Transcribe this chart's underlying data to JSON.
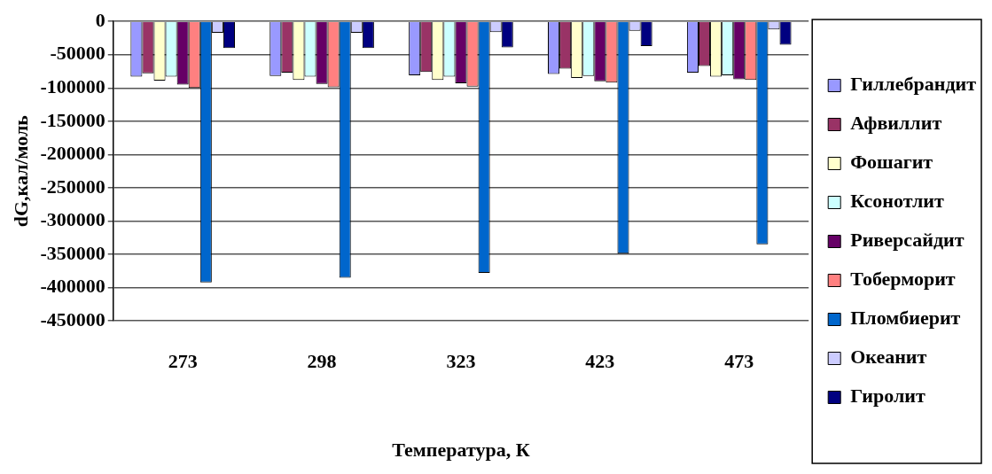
{
  "chart_data": {
    "type": "bar",
    "xlabel": "Температура, К",
    "ylabel": "dG,кал/моль",
    "categories": [
      "273",
      "298",
      "323",
      "423",
      "473"
    ],
    "series": [
      {
        "name": "Гиллебрандит",
        "color": "#9999ff",
        "values": [
          -83000,
          -82000,
          -81000,
          -79000,
          -77000
        ]
      },
      {
        "name": "Афвиллит",
        "color": "#993366",
        "values": [
          -78000,
          -77000,
          -76000,
          -71000,
          -67000
        ]
      },
      {
        "name": "Фошагит",
        "color": "#ffffcc",
        "values": [
          -89000,
          -88000,
          -88000,
          -85000,
          -83000
        ]
      },
      {
        "name": "Ксонотлит",
        "color": "#ccffff",
        "values": [
          -83000,
          -83000,
          -83000,
          -82000,
          -81000
        ]
      },
      {
        "name": "Риверсайдит",
        "color": "#660066",
        "values": [
          -95000,
          -94000,
          -93000,
          -90000,
          -87000
        ]
      },
      {
        "name": "Тоберморит",
        "color": "#ff8080",
        "values": [
          -100000,
          -99000,
          -98000,
          -92000,
          -88000
        ]
      },
      {
        "name": "Пломбиерит",
        "color": "#0066cc",
        "values": [
          -392000,
          -385000,
          -378000,
          -349000,
          -335000
        ]
      },
      {
        "name": "Океанит",
        "color": "#ccccff",
        "values": [
          -17000,
          -17000,
          -16000,
          -14000,
          -12000
        ]
      },
      {
        "name": "Гиролит",
        "color": "#000080",
        "values": [
          -40000,
          -40000,
          -39000,
          -37000,
          -35000
        ]
      }
    ],
    "ylim": [
      -450000,
      0
    ],
    "yticks": [
      0,
      -50000,
      -100000,
      -150000,
      -200000,
      -250000,
      -300000,
      -350000,
      -400000,
      -450000
    ],
    "grid": "y",
    "legend": "right"
  }
}
